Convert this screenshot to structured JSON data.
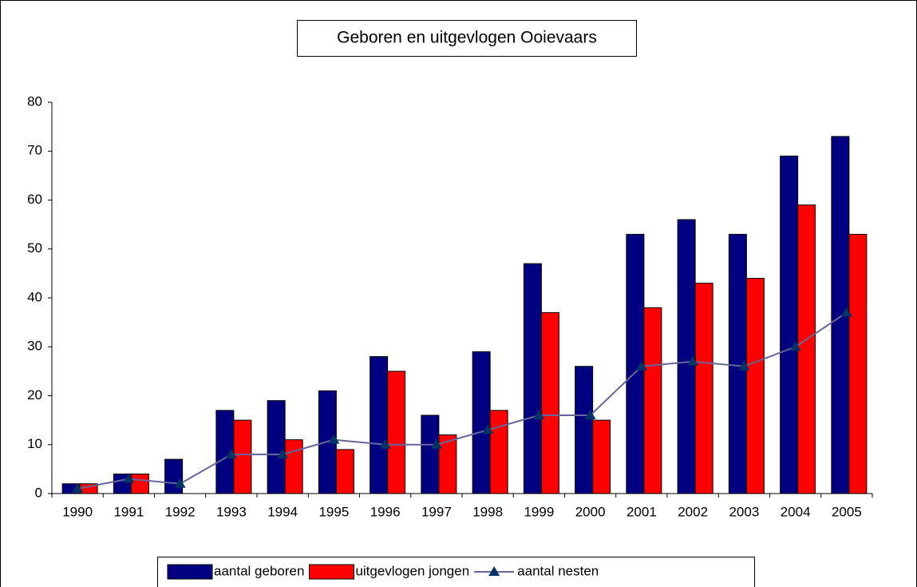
{
  "chart_data": {
    "type": "bar",
    "title": "Geboren en uitgevlogen Ooievaars",
    "categories": [
      "1990",
      "1991",
      "1992",
      "1993",
      "1994",
      "1995",
      "1996",
      "1997",
      "1998",
      "1999",
      "2000",
      "2001",
      "2002",
      "2003",
      "2004",
      "2005"
    ],
    "series": [
      {
        "name": "aantal geboren",
        "color": "#000080",
        "values": [
          2,
          4,
          7,
          17,
          19,
          21,
          28,
          16,
          29,
          47,
          26,
          53,
          56,
          53,
          69,
          73
        ]
      },
      {
        "name": "uitgevlogen jongen",
        "color": "#ff0000",
        "values": [
          2,
          4,
          0,
          15,
          11,
          9,
          25,
          12,
          17,
          37,
          15,
          38,
          43,
          44,
          59,
          53
        ]
      },
      {
        "name": "aantal nesten",
        "color": "#666699",
        "type": "line",
        "marker_color": "#003366",
        "values": [
          1,
          3,
          2,
          8,
          8,
          11,
          10,
          10,
          13,
          16,
          16,
          26,
          27,
          26,
          30,
          37
        ]
      }
    ],
    "ylim": [
      0,
      80
    ],
    "yticks": [
      0,
      10,
      20,
      30,
      40,
      50,
      60,
      70,
      80
    ],
    "grid": false,
    "legend": "bottom"
  }
}
